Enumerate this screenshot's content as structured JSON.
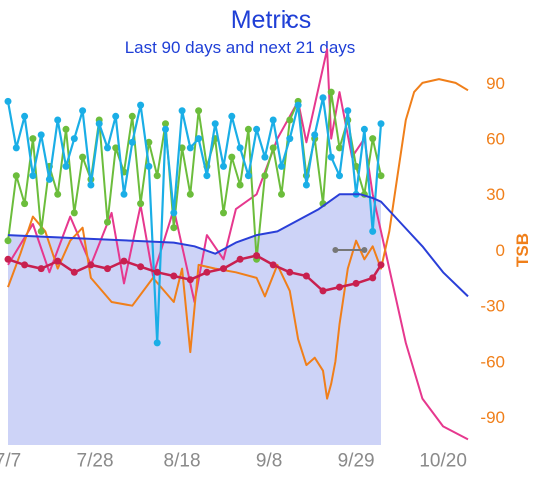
{
  "header": {
    "title": "Metrics",
    "chevron": "›",
    "subtitle": "Last 90 days and next 21 days"
  },
  "colors": {
    "title": "#1f3fd6",
    "fitness": "#2a3fd8",
    "fitness_fill": "#cdd3f7",
    "fatigue": "#e6388e",
    "tsb": "#f07f1a",
    "form_points": "#c8204f",
    "cyan": "#1aaee6",
    "green": "#6cbd3c",
    "marker": "#777777"
  },
  "chart_data": {
    "type": "line",
    "x_ticks": [
      "7/7",
      "7/28",
      "8/18",
      "9/8",
      "9/29",
      "10/20"
    ],
    "y_ticks": [
      90,
      60,
      30,
      0,
      -30,
      -60,
      -90
    ],
    "y_label": "TSB",
    "ylim": [
      -105,
      105
    ],
    "day_range": [
      0,
      111
    ],
    "today_day": 90,
    "series": [
      {
        "key": "fitness",
        "points": [
          [
            0,
            8
          ],
          [
            10,
            7
          ],
          [
            20,
            6
          ],
          [
            30,
            5
          ],
          [
            40,
            4
          ],
          [
            45,
            2
          ],
          [
            50,
            -2
          ],
          [
            55,
            4
          ],
          [
            60,
            8
          ],
          [
            65,
            10
          ],
          [
            70,
            16
          ],
          [
            75,
            22
          ],
          [
            80,
            30
          ],
          [
            85,
            30
          ],
          [
            88,
            28
          ],
          [
            90,
            26
          ],
          [
            95,
            14
          ],
          [
            100,
            2
          ],
          [
            105,
            -12
          ],
          [
            111,
            -25
          ]
        ]
      },
      {
        "key": "fatigue",
        "points": [
          [
            0,
            -8
          ],
          [
            6,
            14
          ],
          [
            10,
            -12
          ],
          [
            15,
            18
          ],
          [
            20,
            -8
          ],
          [
            25,
            20
          ],
          [
            28,
            -18
          ],
          [
            32,
            24
          ],
          [
            35,
            -14
          ],
          [
            40,
            22
          ],
          [
            45,
            -28
          ],
          [
            48,
            8
          ],
          [
            52,
            -5
          ],
          [
            55,
            22
          ],
          [
            60,
            30
          ],
          [
            65,
            60
          ],
          [
            70,
            80
          ],
          [
            72,
            58
          ],
          [
            75,
            88
          ],
          [
            77,
            108
          ],
          [
            78,
            60
          ],
          [
            80,
            85
          ],
          [
            83,
            50
          ],
          [
            86,
            60
          ],
          [
            88,
            30
          ],
          [
            90,
            10
          ],
          [
            93,
            -20
          ],
          [
            96,
            -50
          ],
          [
            100,
            -80
          ],
          [
            105,
            -95
          ],
          [
            111,
            -102
          ]
        ]
      },
      {
        "key": "tsb",
        "points": [
          [
            0,
            -20
          ],
          [
            3,
            -2
          ],
          [
            6,
            18
          ],
          [
            9,
            10
          ],
          [
            12,
            -10
          ],
          [
            15,
            5
          ],
          [
            18,
            12
          ],
          [
            20,
            -15
          ],
          [
            25,
            -28
          ],
          [
            30,
            -30
          ],
          [
            35,
            -15
          ],
          [
            40,
            -28
          ],
          [
            42,
            -10
          ],
          [
            44,
            -55
          ],
          [
            46,
            -8
          ],
          [
            50,
            -10
          ],
          [
            55,
            -12
          ],
          [
            60,
            -15
          ],
          [
            62,
            -25
          ],
          [
            65,
            -8
          ],
          [
            68,
            -22
          ],
          [
            70,
            -48
          ],
          [
            72,
            -62
          ],
          [
            74,
            -58
          ],
          [
            76,
            -65
          ],
          [
            77,
            -80
          ],
          [
            78,
            -72
          ],
          [
            79,
            -60
          ],
          [
            80,
            -40
          ],
          [
            82,
            -10
          ],
          [
            84,
            5
          ],
          [
            86,
            -5
          ],
          [
            88,
            2
          ],
          [
            90,
            -10
          ],
          [
            92,
            10
          ],
          [
            94,
            40
          ],
          [
            96,
            70
          ],
          [
            98,
            85
          ],
          [
            100,
            90
          ],
          [
            104,
            92
          ],
          [
            108,
            90
          ],
          [
            111,
            86
          ]
        ]
      },
      {
        "key": "cyan",
        "points": [
          [
            0,
            80
          ],
          [
            2,
            55
          ],
          [
            4,
            72
          ],
          [
            6,
            40
          ],
          [
            8,
            62
          ],
          [
            10,
            38
          ],
          [
            12,
            70
          ],
          [
            14,
            45
          ],
          [
            16,
            60
          ],
          [
            18,
            75
          ],
          [
            20,
            35
          ],
          [
            22,
            68
          ],
          [
            24,
            55
          ],
          [
            26,
            72
          ],
          [
            28,
            30
          ],
          [
            30,
            58
          ],
          [
            32,
            78
          ],
          [
            34,
            45
          ],
          [
            36,
            -50
          ],
          [
            38,
            65
          ],
          [
            40,
            20
          ],
          [
            42,
            75
          ],
          [
            44,
            55
          ],
          [
            46,
            60
          ],
          [
            48,
            40
          ],
          [
            50,
            68
          ],
          [
            52,
            45
          ],
          [
            54,
            72
          ],
          [
            56,
            55
          ],
          [
            58,
            40
          ],
          [
            60,
            65
          ],
          [
            62,
            50
          ],
          [
            64,
            70
          ],
          [
            66,
            45
          ],
          [
            68,
            60
          ],
          [
            70,
            78
          ],
          [
            72,
            35
          ],
          [
            74,
            62
          ],
          [
            76,
            82
          ],
          [
            78,
            50
          ],
          [
            80,
            40
          ],
          [
            82,
            75
          ],
          [
            84,
            30
          ],
          [
            86,
            65
          ],
          [
            88,
            10
          ],
          [
            90,
            68
          ]
        ]
      },
      {
        "key": "green",
        "points": [
          [
            0,
            5
          ],
          [
            2,
            40
          ],
          [
            4,
            25
          ],
          [
            6,
            60
          ],
          [
            8,
            10
          ],
          [
            10,
            45
          ],
          [
            12,
            30
          ],
          [
            14,
            65
          ],
          [
            16,
            20
          ],
          [
            18,
            50
          ],
          [
            20,
            38
          ],
          [
            22,
            70
          ],
          [
            24,
            15
          ],
          [
            26,
            55
          ],
          [
            28,
            42
          ],
          [
            30,
            72
          ],
          [
            32,
            25
          ],
          [
            34,
            58
          ],
          [
            36,
            40
          ],
          [
            38,
            68
          ],
          [
            40,
            12
          ],
          [
            42,
            55
          ],
          [
            44,
            30
          ],
          [
            46,
            75
          ],
          [
            48,
            45
          ],
          [
            50,
            60
          ],
          [
            52,
            20
          ],
          [
            54,
            50
          ],
          [
            56,
            35
          ],
          [
            58,
            65
          ],
          [
            60,
            -5
          ],
          [
            62,
            40
          ],
          [
            64,
            55
          ],
          [
            66,
            30
          ],
          [
            68,
            70
          ],
          [
            70,
            80
          ],
          [
            72,
            40
          ],
          [
            74,
            60
          ],
          [
            76,
            25
          ],
          [
            78,
            85
          ],
          [
            80,
            55
          ],
          [
            82,
            70
          ],
          [
            84,
            45
          ],
          [
            86,
            30
          ],
          [
            88,
            60
          ],
          [
            90,
            40
          ]
        ]
      },
      {
        "key": "form_points",
        "points": [
          [
            0,
            -5
          ],
          [
            4,
            -8
          ],
          [
            8,
            -10
          ],
          [
            12,
            -6
          ],
          [
            16,
            -12
          ],
          [
            20,
            -8
          ],
          [
            24,
            -10
          ],
          [
            28,
            -6
          ],
          [
            32,
            -9
          ],
          [
            36,
            -12
          ],
          [
            40,
            -14
          ],
          [
            44,
            -16
          ],
          [
            48,
            -12
          ],
          [
            52,
            -10
          ],
          [
            56,
            -5
          ],
          [
            60,
            -3
          ],
          [
            64,
            -8
          ],
          [
            68,
            -12
          ],
          [
            72,
            -14
          ],
          [
            76,
            -22
          ],
          [
            80,
            -20
          ],
          [
            84,
            -18
          ],
          [
            88,
            -15
          ],
          [
            90,
            -8
          ]
        ]
      }
    ]
  }
}
